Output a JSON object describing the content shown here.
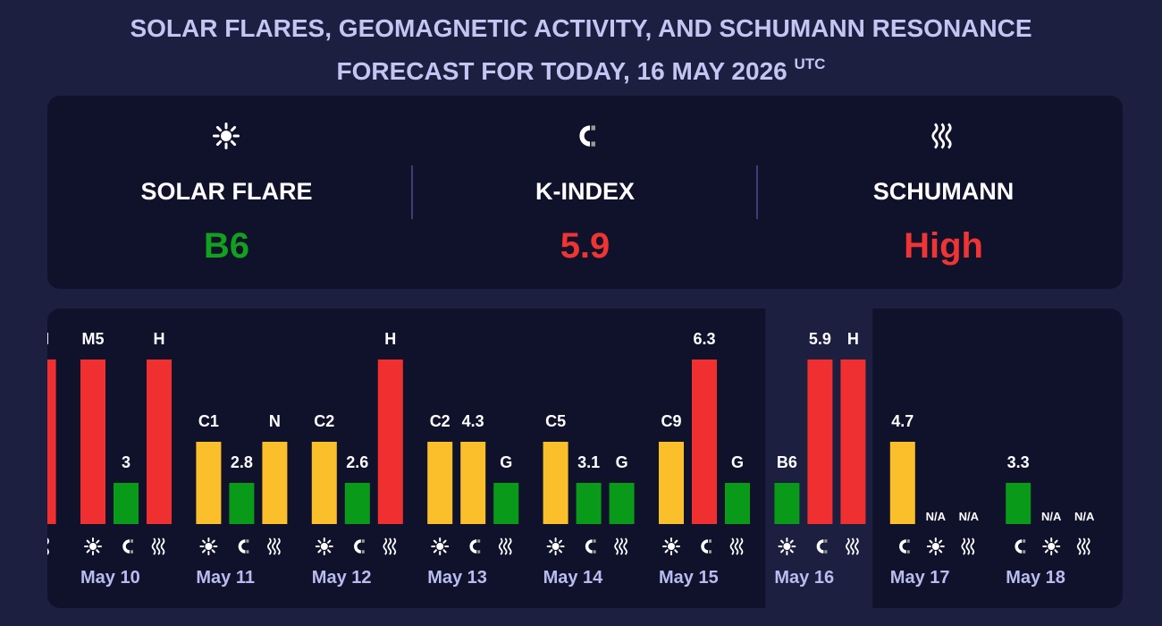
{
  "header": {
    "title_line1": "SOLAR FLARES, GEOMAGNETIC ACTIVITY, AND SCHUMANN RESONANCE",
    "title_line2": "FORECAST FOR TODAY, 16 MAY 2026",
    "title_sup": "UTC"
  },
  "summary": [
    {
      "kind": "flare",
      "label": "SOLAR FLARE",
      "value": "B6",
      "color": "#12a01e"
    },
    {
      "kind": "kindex",
      "label": "K-INDEX",
      "value": "5.9",
      "color": "#f03434"
    },
    {
      "kind": "schumann",
      "label": "SCHUMANN",
      "value": "High",
      "color": "#f03434"
    }
  ],
  "chart_data": {
    "type": "bar",
    "ylim": [
      0,
      4
    ],
    "highlight": 7,
    "days": [
      {
        "date": null,
        "bars": [
          {
            "kind": "schumann",
            "slot": 2,
            "label": "H",
            "level": 4,
            "color": "#f03030"
          }
        ]
      },
      {
        "date": "May 10",
        "bars": [
          {
            "kind": "flare",
            "slot": 0,
            "label": "M5",
            "level": 4,
            "color": "#f03030"
          },
          {
            "kind": "kindex",
            "slot": 1,
            "label": "3",
            "level": 1,
            "color": "#0a9a1a"
          },
          {
            "kind": "schumann",
            "slot": 2,
            "label": "H",
            "level": 4,
            "color": "#f03030"
          }
        ]
      },
      {
        "date": "May 11",
        "bars": [
          {
            "kind": "flare",
            "slot": 0,
            "label": "C1",
            "level": 2,
            "color": "#fbbf2c"
          },
          {
            "kind": "kindex",
            "slot": 1,
            "label": "2.8",
            "level": 1,
            "color": "#0a9a1a"
          },
          {
            "kind": "schumann",
            "slot": 2,
            "label": "N",
            "level": 2,
            "color": "#fbbf2c"
          }
        ]
      },
      {
        "date": "May 12",
        "bars": [
          {
            "kind": "flare",
            "slot": 0,
            "label": "C2",
            "level": 2,
            "color": "#fbbf2c"
          },
          {
            "kind": "kindex",
            "slot": 1,
            "label": "2.6",
            "level": 1,
            "color": "#0a9a1a"
          },
          {
            "kind": "schumann",
            "slot": 2,
            "label": "H",
            "level": 4,
            "color": "#f03030"
          }
        ]
      },
      {
        "date": "May 13",
        "bars": [
          {
            "kind": "flare",
            "slot": 0,
            "label": "C2",
            "level": 2,
            "color": "#fbbf2c"
          },
          {
            "kind": "kindex",
            "slot": 1,
            "label": "4.3",
            "level": 2,
            "color": "#fbbf2c"
          },
          {
            "kind": "schumann",
            "slot": 2,
            "label": "G",
            "level": 1,
            "color": "#0a9a1a"
          }
        ]
      },
      {
        "date": "May 14",
        "bars": [
          {
            "kind": "flare",
            "slot": 0,
            "label": "C5",
            "level": 2,
            "color": "#fbbf2c"
          },
          {
            "kind": "kindex",
            "slot": 1,
            "label": "3.1",
            "level": 1,
            "color": "#0a9a1a"
          },
          {
            "kind": "schumann",
            "slot": 2,
            "label": "G",
            "level": 1,
            "color": "#0a9a1a"
          }
        ]
      },
      {
        "date": "May 15",
        "bars": [
          {
            "kind": "flare",
            "slot": 0,
            "label": "C9",
            "level": 2,
            "color": "#fbbf2c"
          },
          {
            "kind": "kindex",
            "slot": 1,
            "label": "6.3",
            "level": 4,
            "color": "#f03030"
          },
          {
            "kind": "schumann",
            "slot": 2,
            "label": "G",
            "level": 1,
            "color": "#0a9a1a"
          }
        ]
      },
      {
        "date": "May 16",
        "bars": [
          {
            "kind": "flare",
            "slot": 0,
            "label": "B6",
            "level": 1,
            "color": "#0a9a1a"
          },
          {
            "kind": "kindex",
            "slot": 1,
            "label": "5.9",
            "level": 4,
            "color": "#f03030"
          },
          {
            "kind": "schumann",
            "slot": 2,
            "label": "H",
            "level": 4,
            "color": "#f03030"
          }
        ]
      },
      {
        "date": "May 17",
        "bars": [
          {
            "kind": "kindex",
            "slot": 0,
            "label": "4.7",
            "level": 2,
            "color": "#fbbf2c"
          },
          {
            "kind": "flare",
            "slot": 1,
            "label": "N/A",
            "level": null,
            "color": null
          },
          {
            "kind": "schumann",
            "slot": 2,
            "label": "N/A",
            "level": null,
            "color": null
          }
        ]
      },
      {
        "date": "May 18",
        "bars": [
          {
            "kind": "kindex",
            "slot": 0,
            "label": "3.3",
            "level": 1,
            "color": "#0a9a1a"
          },
          {
            "kind": "flare",
            "slot": 1,
            "label": "N/A",
            "level": null,
            "color": null
          },
          {
            "kind": "schumann",
            "slot": 2,
            "label": "N/A",
            "level": null,
            "color": null
          }
        ]
      }
    ]
  }
}
